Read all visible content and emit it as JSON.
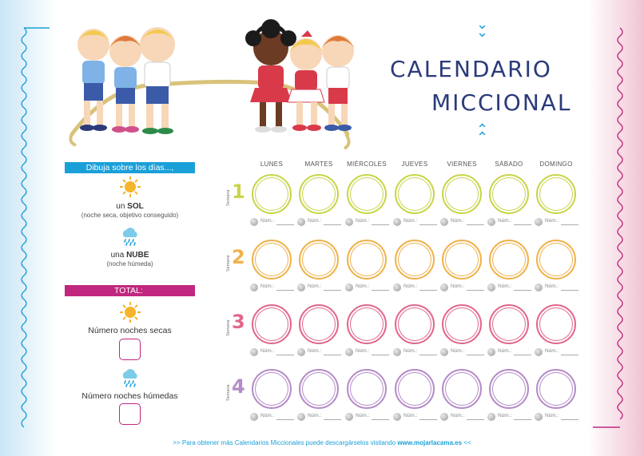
{
  "title": {
    "line1": "CALENDARIO",
    "line2": "MICCIONAL"
  },
  "sidebar": {
    "instruction_bar": "Dibuja sobre los días...,",
    "legend": [
      {
        "icon": "sun-icon",
        "prefix": "un",
        "keyword": "SOL",
        "note": "(noche seca, objetivo conseguido)"
      },
      {
        "icon": "rain-cloud-icon",
        "prefix": "una",
        "keyword": "NUBE",
        "note": "(noche húmeda)"
      }
    ],
    "total_bar": "TOTAL:",
    "totals": [
      {
        "icon": "sun-icon",
        "label": "Número noches secas"
      },
      {
        "icon": "rain-cloud-icon",
        "label": "Número noches húmedas"
      }
    ]
  },
  "calendar": {
    "days": [
      "LUNES",
      "MARTES",
      "MIÉRCOLES",
      "JUEVES",
      "VIERNES",
      "SÁBADO",
      "DOMINGO"
    ],
    "week_word": "Semana",
    "count_label": "Núm.:",
    "weeks": [
      {
        "number": "1",
        "color": "#c9d44a"
      },
      {
        "number": "2",
        "color": "#f0b24a"
      },
      {
        "number": "3",
        "color": "#e2678a"
      },
      {
        "number": "4",
        "color": "#b48cc8"
      }
    ]
  },
  "footer": {
    "prefix": ">> Para obtener más Calendarios Miccionales puede descargárselos visitando",
    "link": "www.mojarlacama.es",
    "suffix": "<<"
  },
  "colors": {
    "accent_blue": "#1aa0d8",
    "accent_magenta": "#c0277e",
    "title_navy": "#2b3a7a"
  }
}
